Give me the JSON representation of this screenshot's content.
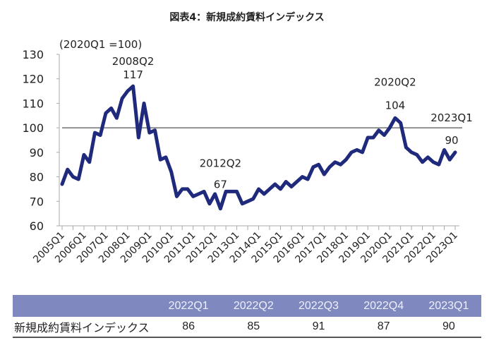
{
  "chart_data": {
    "type": "line",
    "title": "図表4：新規成約賃料インデックス",
    "unit_note": "(2020Q1 =100)",
    "ylim": [
      60,
      130
    ],
    "yticks": [
      60,
      70,
      80,
      90,
      100,
      110,
      120,
      130
    ],
    "reference_line": 100,
    "grid": false,
    "line_color": "#1f2a7c",
    "x_tick_labels": [
      "2005Q1",
      "2006Q1",
      "2007Q1",
      "2008Q1",
      "2009Q1",
      "2010Q1",
      "2011Q1",
      "2012Q1",
      "2013Q1",
      "2014Q1",
      "2015Q1",
      "2016Q1",
      "2017Q1",
      "2018Q1",
      "2019Q1",
      "2020Q1",
      "2021Q1",
      "2022Q1",
      "2023Q1"
    ],
    "x_start": "2005Q1",
    "x_end": "2023Q1",
    "values": [
      77,
      83,
      80,
      79,
      89,
      86,
      98,
      97,
      106,
      108,
      104,
      112,
      115,
      117,
      96,
      110,
      98,
      99,
      87,
      88,
      82,
      72,
      75,
      75,
      72,
      73,
      74,
      69,
      73,
      67,
      74,
      74,
      74,
      69,
      70,
      71,
      75,
      73,
      75,
      77,
      75,
      78,
      76,
      78,
      80,
      79,
      84,
      85,
      81,
      84,
      86,
      85,
      87,
      90,
      91,
      90,
      96,
      96,
      99,
      97,
      100,
      104,
      102,
      92,
      90,
      89,
      86,
      88,
      86,
      85,
      91,
      87,
      90
    ],
    "annotations": [
      {
        "period": "2008Q2",
        "label": "2008Q2",
        "value": "117"
      },
      {
        "period": "2012Q2",
        "label": "2012Q2",
        "value": "67"
      },
      {
        "period": "2020Q2",
        "label": "2020Q2",
        "value": "104"
      },
      {
        "period": "2023Q1",
        "label": "2023Q1",
        "value": "90"
      }
    ]
  },
  "table": {
    "headers": [
      "",
      "2022Q1",
      "2022Q2",
      "2022Q3",
      "2022Q4",
      "2023Q1"
    ],
    "row_label": "新規成約賃料インデックス",
    "row_values": [
      "86",
      "85",
      "91",
      "87",
      "90"
    ],
    "header_color": "#7f89c0"
  }
}
